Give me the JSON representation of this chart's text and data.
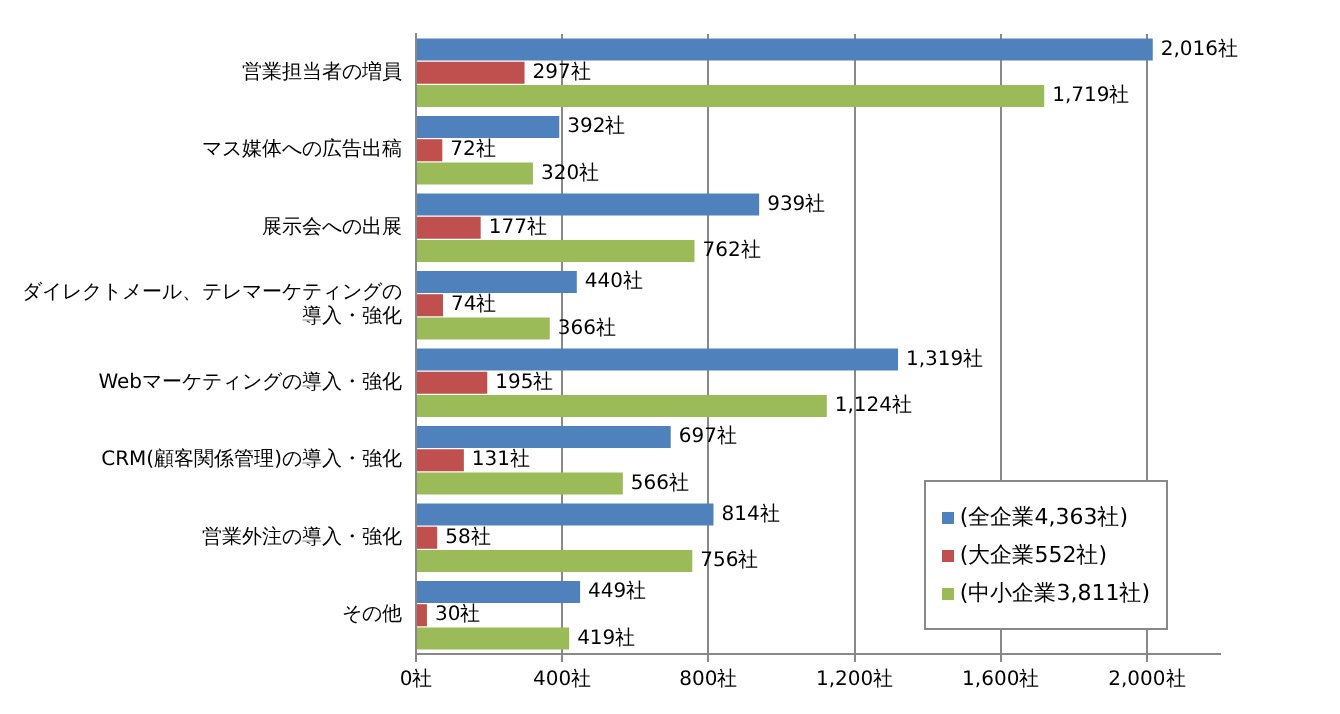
{
  "chart_data": {
    "type": "bar",
    "orientation": "horizontal",
    "categories": [
      "営業担当者の増員",
      "マス媒体への広告出稿",
      "展示会への出展",
      "ダイレクトメール、テレマーケティングの導入・強化",
      "Webマーケティングの導入・強化",
      "CRM(顧客関係管理)の導入・強化",
      "営業外注の導入・強化",
      "その他"
    ],
    "series": [
      {
        "name": "(全企業4,363社)",
        "color": "#4f81bd",
        "values": [
          2016,
          392,
          939,
          440,
          1319,
          697,
          814,
          449
        ],
        "value_labels": [
          "2,016社",
          "392社",
          "939社",
          "440社",
          "1,319社",
          "697社",
          "814社",
          "449社"
        ]
      },
      {
        "name": "(大企業552社)",
        "color": "#c0504d",
        "values": [
          297,
          72,
          177,
          74,
          195,
          131,
          58,
          30
        ],
        "value_labels": [
          "297社",
          "72社",
          "177社",
          "74社",
          "195社",
          "131社",
          "58社",
          "30社"
        ]
      },
      {
        "name": "(中小企業3,811社)",
        "color": "#9bbb59",
        "values": [
          1719,
          320,
          762,
          366,
          1124,
          566,
          756,
          419
        ],
        "value_labels": [
          "1,719社",
          "320社",
          "762社",
          "366社",
          "1,124社",
          "566社",
          "756社",
          "419社"
        ]
      }
    ],
    "xlim": [
      0,
      2200
    ],
    "xticks": [
      {
        "value": 0,
        "label": "0社"
      },
      {
        "value": 400,
        "label": "400社"
      },
      {
        "value": 800,
        "label": "800社"
      },
      {
        "value": 1200,
        "label": "1,200社"
      },
      {
        "value": 1600,
        "label": "1,600社"
      },
      {
        "value": 2000,
        "label": "2,000社"
      }
    ],
    "grid": "x",
    "legend": "bottom right"
  }
}
